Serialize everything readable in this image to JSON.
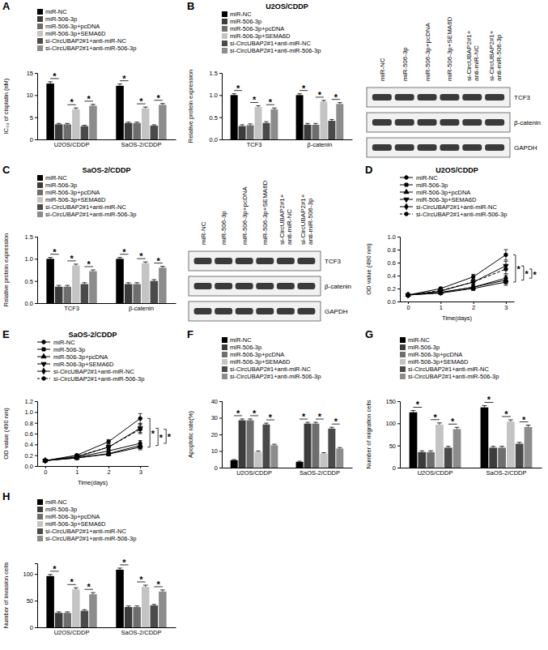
{
  "chart_data": [
    {
      "panel": "A",
      "type": "bar",
      "y_label": "IC₅₀ of cisplatin (nM)",
      "categories": [
        "U2OS/CDDP",
        "SaOS-2/CDDP"
      ],
      "series": [
        {
          "name": "miR-NC",
          "color": "#000000",
          "values": [
            12.6,
            12.1
          ],
          "errors": [
            0.4,
            0.4
          ]
        },
        {
          "name": "miR-506-3p",
          "color": "#3c3c3c",
          "values": [
            3.4,
            3.7
          ],
          "errors": [
            0.2,
            0.2
          ]
        },
        {
          "name": "miR-506-3p+pcDNA",
          "color": "#6e6e6e",
          "values": [
            3.4,
            3.7
          ],
          "errors": [
            0.2,
            0.2
          ]
        },
        {
          "name": "miR-506-3p+SEMA6D",
          "color": "#c4c4c4",
          "values": [
            6.8,
            7.0
          ],
          "errors": [
            0.3,
            0.3
          ]
        },
        {
          "name": "si-CircUBAP2#1+anti-miR-NC",
          "color": "#4a4a4a",
          "values": [
            3.0,
            3.1
          ],
          "errors": [
            0.2,
            0.2
          ]
        },
        {
          "name": "si-CircUBAP2#1+anti-miR-506-3p",
          "color": "#8c8c8c",
          "values": [
            7.6,
            7.8
          ],
          "errors": [
            0.3,
            0.3
          ]
        }
      ],
      "ylim": [
        0,
        15
      ],
      "yticks": [
        0,
        5,
        10,
        15
      ],
      "annotations": [
        {
          "text": "*",
          "between": [
            0,
            1
          ]
        },
        {
          "text": "*",
          "between": [
            2,
            3
          ]
        },
        {
          "text": "*",
          "between": [
            4,
            5
          ]
        }
      ]
    },
    {
      "panel": "B",
      "type": "bar",
      "title": "U2OS/CDDP",
      "y_label": "Relative protein expression",
      "categories": [
        "TCF3",
        "β-catenin"
      ],
      "series": [
        {
          "name": "miR-NC",
          "color": "#000000",
          "values": [
            1.0,
            1.0
          ],
          "errors": [
            0.03,
            0.03
          ]
        },
        {
          "name": "miR-506-3p",
          "color": "#3c3c3c",
          "values": [
            0.3,
            0.33
          ],
          "errors": [
            0.03,
            0.03
          ]
        },
        {
          "name": "miR-506-3p+pcDNA",
          "color": "#6e6e6e",
          "values": [
            0.32,
            0.33
          ],
          "errors": [
            0.03,
            0.03
          ]
        },
        {
          "name": "miR-506-3p+SEMA6D",
          "color": "#c4c4c4",
          "values": [
            0.73,
            0.85
          ],
          "errors": [
            0.03,
            0.03
          ]
        },
        {
          "name": "si-CircUBAP2#1+anti-miR-NC",
          "color": "#4a4a4a",
          "values": [
            0.37,
            0.42
          ],
          "errors": [
            0.03,
            0.03
          ]
        },
        {
          "name": "si-CircUBAP2#1+anti-miR-506-3p",
          "color": "#8c8c8c",
          "values": [
            0.68,
            0.8
          ],
          "errors": [
            0.03,
            0.03
          ]
        }
      ],
      "ylim": [
        0,
        1.5
      ],
      "yticks": [
        {
          "value": 0,
          "label": "0.0"
        },
        0.5,
        {
          "value": 1,
          "label": "1.0"
        },
        1.5
      ],
      "annotations": [
        {
          "text": "*",
          "between": [
            0,
            1
          ]
        },
        {
          "text": "*",
          "between": [
            2,
            3
          ]
        },
        {
          "text": "*",
          "between": [
            4,
            5
          ]
        }
      ]
    },
    {
      "panel": "C",
      "type": "bar",
      "title": "SaOS-2/CDDP",
      "y_label": "Relative protein expression",
      "categories": [
        "TCF3",
        "β-catenin"
      ],
      "series": [
        {
          "name": "miR-NC",
          "color": "#000000",
          "values": [
            1.0,
            1.0
          ],
          "errors": [
            0.03,
            0.03
          ]
        },
        {
          "name": "miR-506-3p",
          "color": "#3c3c3c",
          "values": [
            0.37,
            0.43
          ],
          "errors": [
            0.03,
            0.03
          ]
        },
        {
          "name": "miR-506-3p+pcDNA",
          "color": "#6e6e6e",
          "values": [
            0.37,
            0.43
          ],
          "errors": [
            0.03,
            0.03
          ]
        },
        {
          "name": "miR-506-3p+SEMA6D",
          "color": "#c4c4c4",
          "values": [
            0.85,
            0.9
          ],
          "errors": [
            0.03,
            0.03
          ]
        },
        {
          "name": "si-CircUBAP2#1+anti-miR-NC",
          "color": "#4a4a4a",
          "values": [
            0.43,
            0.5
          ],
          "errors": [
            0.03,
            0.03
          ]
        },
        {
          "name": "si-CircUBAP2#1+anti-miR-506-3p",
          "color": "#8c8c8c",
          "values": [
            0.72,
            0.8
          ],
          "errors": [
            0.03,
            0.03
          ]
        }
      ],
      "ylim": [
        0,
        1.5
      ],
      "yticks": [
        {
          "value": 0,
          "label": "0.0"
        },
        0.5,
        {
          "value": 1,
          "label": "1.0"
        },
        1.5
      ],
      "annotations": [
        {
          "text": "*",
          "between": [
            0,
            1
          ]
        },
        {
          "text": "*",
          "between": [
            2,
            3
          ]
        },
        {
          "text": "*",
          "between": [
            4,
            5
          ]
        }
      ]
    },
    {
      "panel": "D",
      "type": "line",
      "title": "U2OS/CDDP",
      "x_label": "Time(days)",
      "y_label": "OD value (490 nm)",
      "x": [
        0,
        1,
        2,
        3
      ],
      "series": [
        {
          "name": "miR-NC",
          "color": "#000000",
          "marker": "circle",
          "line_style": "solid",
          "values": [
            0.1,
            0.2,
            0.38,
            0.72
          ],
          "errors": [
            0.01,
            0.02,
            0.04,
            0.08
          ]
        },
        {
          "name": "miR-506-3p",
          "color": "#000000",
          "marker": "square",
          "line_style": "solid",
          "values": [
            0.1,
            0.13,
            0.2,
            0.3
          ],
          "errors": [
            0.01,
            0.02,
            0.03,
            0.05
          ]
        },
        {
          "name": "miR-506-3p+pcDNA",
          "color": "#000000",
          "marker": "triangle-up",
          "line_style": "solid",
          "values": [
            0.1,
            0.14,
            0.22,
            0.33
          ],
          "errors": [
            0.01,
            0.02,
            0.03,
            0.05
          ]
        },
        {
          "name": "miR-506-3p+SEMA6D",
          "color": "#000000",
          "marker": "triangle-down",
          "line_style": "solid",
          "values": [
            0.1,
            0.16,
            0.3,
            0.55
          ],
          "errors": [
            0.01,
            0.02,
            0.04,
            0.07
          ]
        },
        {
          "name": "si-CircUBAP2#1+anti-miR-NC",
          "color": "#000000",
          "marker": "diamond",
          "line_style": "solid",
          "values": [
            0.1,
            0.14,
            0.22,
            0.36
          ],
          "errors": [
            0.01,
            0.02,
            0.03,
            0.05
          ]
        },
        {
          "name": "si-CircUBAP2#1+anti-miR-506-3p",
          "color": "#000000",
          "marker": "circle",
          "line_style": "dashed",
          "values": [
            0.1,
            0.17,
            0.3,
            0.5
          ],
          "errors": [
            0.01,
            0.02,
            0.04,
            0.07
          ]
        }
      ],
      "xlim": [
        -0.25,
        3.25
      ],
      "xticks": [
        0,
        1,
        2,
        3
      ],
      "ylim": [
        0,
        1
      ],
      "yticks": [
        {
          "value": 0,
          "label": "0.0"
        },
        0.2,
        0.4,
        0.6,
        0.8,
        {
          "value": 1,
          "label": "1.0"
        }
      ],
      "annotations": [
        {
          "text": "*",
          "between": [
            0,
            1
          ]
        },
        {
          "text": "*",
          "between": [
            2,
            3
          ]
        },
        {
          "text": "*",
          "between": [
            4,
            5
          ]
        }
      ]
    },
    {
      "panel": "E",
      "type": "line",
      "title": "SaOS-2/CDDP",
      "x_label": "Time(days)",
      "y_label": "OD value (490 nm)",
      "x": [
        0,
        1,
        2,
        3
      ],
      "series": [
        {
          "name": "miR-NC",
          "color": "#000000",
          "marker": "circle",
          "line_style": "solid",
          "values": [
            0.1,
            0.2,
            0.45,
            0.88
          ],
          "errors": [
            0.01,
            0.02,
            0.04,
            0.09
          ]
        },
        {
          "name": "miR-506-3p",
          "color": "#000000",
          "marker": "square",
          "line_style": "solid",
          "values": [
            0.1,
            0.15,
            0.22,
            0.35
          ],
          "errors": [
            0.01,
            0.02,
            0.03,
            0.05
          ]
        },
        {
          "name": "miR-506-3p+pcDNA",
          "color": "#000000",
          "marker": "triangle-up",
          "line_style": "solid",
          "values": [
            0.1,
            0.15,
            0.23,
            0.38
          ],
          "errors": [
            0.01,
            0.02,
            0.03,
            0.05
          ]
        },
        {
          "name": "miR-506-3p+SEMA6D",
          "color": "#000000",
          "marker": "triangle-down",
          "line_style": "solid",
          "values": [
            0.1,
            0.17,
            0.35,
            0.7
          ],
          "errors": [
            0.01,
            0.02,
            0.04,
            0.08
          ]
        },
        {
          "name": "si-CircUBAP2#1+anti-miR-NC",
          "color": "#000000",
          "marker": "diamond",
          "line_style": "solid",
          "values": [
            0.1,
            0.16,
            0.28,
            0.42
          ],
          "errors": [
            0.01,
            0.02,
            0.03,
            0.05
          ]
        },
        {
          "name": "si-CircUBAP2#1+anti-miR-506-3p",
          "color": "#000000",
          "marker": "circle",
          "line_style": "dashed",
          "values": [
            0.1,
            0.18,
            0.35,
            0.68
          ],
          "errors": [
            0.01,
            0.02,
            0.04,
            0.08
          ]
        }
      ],
      "xlim": [
        -0.25,
        3.25
      ],
      "xticks": [
        0,
        1,
        2,
        3
      ],
      "ylim": [
        0,
        1.2
      ],
      "yticks": [
        {
          "value": 0,
          "label": "0.0"
        },
        0.2,
        0.4,
        0.6,
        0.8,
        {
          "value": 1,
          "label": "1.0"
        },
        1.2
      ],
      "annotations": [
        {
          "text": "*",
          "between": [
            0,
            1
          ]
        },
        {
          "text": "*",
          "between": [
            2,
            3
          ]
        },
        {
          "text": "*",
          "between": [
            4,
            5
          ]
        }
      ]
    },
    {
      "panel": "F",
      "type": "bar",
      "y_label": "Apoptotic rate(%)",
      "categories": [
        "U2OS/CDDP",
        "SaOS-2/CDDP"
      ],
      "series": [
        {
          "name": "miR-NC",
          "color": "#000000",
          "values": [
            4.5,
            3.5
          ],
          "errors": [
            0.4,
            0.4
          ]
        },
        {
          "name": "miR-506-3p",
          "color": "#3c3c3c",
          "values": [
            28.5,
            26.5
          ],
          "errors": [
            0.8,
            0.8
          ]
        },
        {
          "name": "miR-506-3p+pcDNA",
          "color": "#6e6e6e",
          "values": [
            28.5,
            26.5
          ],
          "errors": [
            0.8,
            0.8
          ]
        },
        {
          "name": "miR-506-3p+SEMA6D",
          "color": "#c4c4c4",
          "values": [
            9.5,
            8.5
          ],
          "errors": [
            0.5,
            0.5
          ]
        },
        {
          "name": "si-CircUBAP2#1+anti-miR-NC",
          "color": "#4a4a4a",
          "values": [
            26,
            23.5
          ],
          "errors": [
            0.8,
            0.8
          ]
        },
        {
          "name": "si-CircUBAP2#1+anti-miR-506-3p",
          "color": "#8c8c8c",
          "values": [
            13.5,
            11.5
          ],
          "errors": [
            0.6,
            0.6
          ]
        }
      ],
      "ylim": [
        0,
        40
      ],
      "yticks": [
        0,
        10,
        20,
        30,
        40
      ],
      "annotations": [
        {
          "text": "*",
          "between": [
            0,
            1
          ]
        },
        {
          "text": "*",
          "between": [
            2,
            3
          ]
        },
        {
          "text": "*",
          "between": [
            4,
            5
          ]
        }
      ]
    },
    {
      "panel": "G",
      "type": "bar",
      "y_label": "Number of migration cells",
      "categories": [
        "U2OS/CDDP",
        "SaOS-2/CDDP"
      ],
      "series": [
        {
          "name": "miR-NC",
          "color": "#000000",
          "values": [
            125,
            136
          ],
          "errors": [
            4,
            4
          ]
        },
        {
          "name": "miR-506-3p",
          "color": "#3c3c3c",
          "values": [
            35,
            45
          ],
          "errors": [
            3,
            3
          ]
        },
        {
          "name": "miR-506-3p+pcDNA",
          "color": "#6e6e6e",
          "values": [
            35,
            45
          ],
          "errors": [
            3,
            3
          ]
        },
        {
          "name": "miR-506-3p+SEMA6D",
          "color": "#c4c4c4",
          "values": [
            97,
            104
          ],
          "errors": [
            4,
            4
          ]
        },
        {
          "name": "si-CircUBAP2#1+anti-miR-NC",
          "color": "#4a4a4a",
          "values": [
            45,
            54
          ],
          "errors": [
            3,
            3
          ]
        },
        {
          "name": "si-CircUBAP2#1+anti-miR-506-3p",
          "color": "#8c8c8c",
          "values": [
            87,
            92
          ],
          "errors": [
            4,
            4
          ]
        }
      ],
      "ylim": [
        0,
        150
      ],
      "yticks": [
        0,
        50,
        100,
        150
      ],
      "annotations": [
        {
          "text": "*",
          "between": [
            0,
            1
          ]
        },
        {
          "text": "*",
          "between": [
            2,
            3
          ]
        },
        {
          "text": "*",
          "between": [
            4,
            5
          ]
        }
      ]
    },
    {
      "panel": "H",
      "type": "bar",
      "y_label": "Number of invasion cells",
      "categories": [
        "U2OS/CDDP",
        "SaOS-2/CDDP"
      ],
      "series": [
        {
          "name": "miR-NC",
          "color": "#000000",
          "values": [
            96,
            108
          ],
          "errors": [
            3,
            3
          ]
        },
        {
          "name": "miR-506-3p",
          "color": "#3c3c3c",
          "values": [
            27,
            38
          ],
          "errors": [
            2,
            2
          ]
        },
        {
          "name": "miR-506-3p+pcDNA",
          "color": "#6e6e6e",
          "values": [
            27,
            38
          ],
          "errors": [
            2,
            2
          ]
        },
        {
          "name": "miR-506-3p+SEMA6D",
          "color": "#c4c4c4",
          "values": [
            71,
            76
          ],
          "errors": [
            3,
            3
          ]
        },
        {
          "name": "si-CircUBAP2#1+anti-miR-NC",
          "color": "#4a4a4a",
          "values": [
            31,
            41
          ],
          "errors": [
            2,
            2
          ]
        },
        {
          "name": "si-CircUBAP2#1+anti-miR-506-3p",
          "color": "#8c8c8c",
          "values": [
            62,
            67
          ],
          "errors": [
            3,
            3
          ]
        }
      ],
      "ylim": [
        0,
        120
      ],
      "yticks": [
        0,
        50,
        100
      ],
      "annotations": [
        {
          "text": "*",
          "between": [
            0,
            1
          ]
        },
        {
          "text": "*",
          "between": [
            2,
            3
          ]
        },
        {
          "text": "*",
          "between": [
            4,
            5
          ]
        }
      ]
    }
  ],
  "blots": [
    {
      "lanes": [
        [
          "miR-NC"
        ],
        [
          "miR-506-3p"
        ],
        [
          "miR-506-3p+pcDNA"
        ],
        [
          "miR-506-3p+SEMA6D"
        ],
        [
          "si-CircUBAP2#1+",
          "anti-miR-NC"
        ],
        [
          "si-CircUBAP2#1+",
          "anti-miR-506-3p"
        ]
      ],
      "rows": [
        "TCF3",
        "β-catenin",
        "GAPDH"
      ]
    },
    {
      "lanes": [
        [
          "miR-NC"
        ],
        [
          "miR-506-3p"
        ],
        [
          "miR-506-3p+pcDNA"
        ],
        [
          "miR-506-3p+SEMA6D"
        ],
        [
          "si-CircUBAP2#1+",
          "anti-miR-NC"
        ],
        [
          "si-CircUBAP2#1+",
          "anti-miR-506-3p"
        ]
      ],
      "rows": [
        "TCF3",
        "β-catenin",
        "GAPDH"
      ]
    }
  ]
}
